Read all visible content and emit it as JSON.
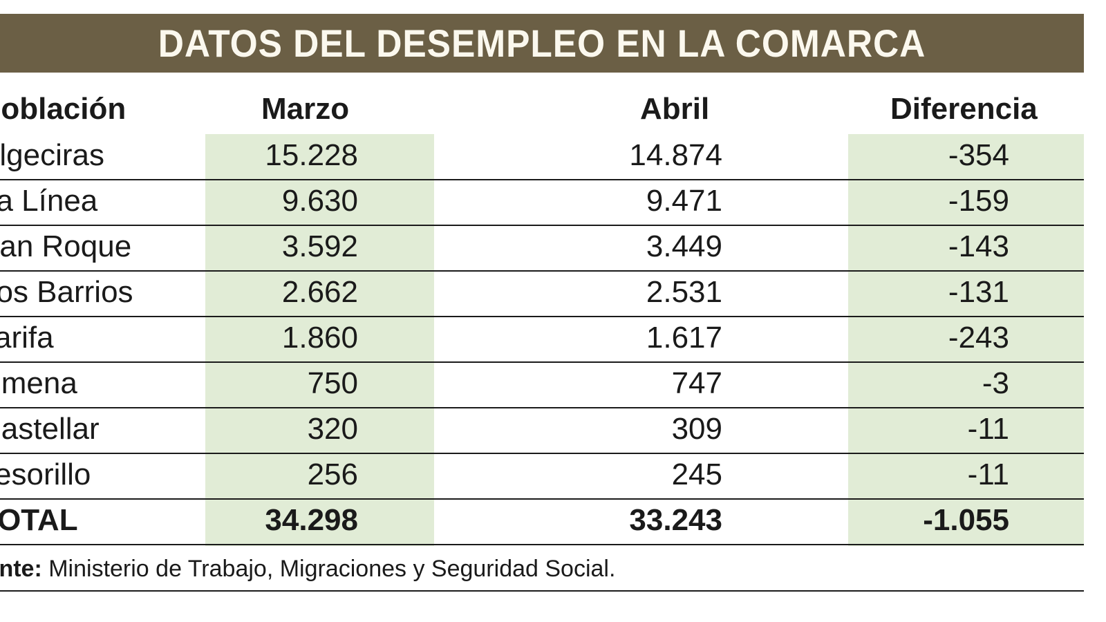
{
  "title": "DATOS DEL DESEMPLEO EN LA COMARCA",
  "colors": {
    "band": "#6b5f45",
    "highlight": "#e1ecd6",
    "title_text": "#fbf8ee"
  },
  "chart_data": {
    "type": "table",
    "title": "DATOS DEL DESEMPLEO EN LA COMARCA",
    "columns": [
      "Población",
      "Marzo",
      "Abril",
      "Diferencia"
    ],
    "rows": [
      [
        "Algeciras",
        "15.228",
        "14.874",
        "-354"
      ],
      [
        "La Línea",
        "9.630",
        "9.471",
        "-159"
      ],
      [
        "San Roque",
        "3.592",
        "3.449",
        "-143"
      ],
      [
        "Los Barrios",
        "2.662",
        "2.531",
        "-131"
      ],
      [
        "Tarifa",
        "1.860",
        "1.617",
        "-243"
      ],
      [
        "Jimena",
        "750",
        "747",
        "-3"
      ],
      [
        "Castellar",
        "320",
        "309",
        "-11"
      ],
      [
        "Tesorillo",
        "256",
        "245",
        "-11"
      ]
    ],
    "total": [
      "TOTAL",
      "34.298",
      "33.243",
      "-1.055"
    ]
  },
  "footer": {
    "label": "Fuente:",
    "text": " Ministerio de Trabajo, Migraciones y Seguridad Social."
  }
}
